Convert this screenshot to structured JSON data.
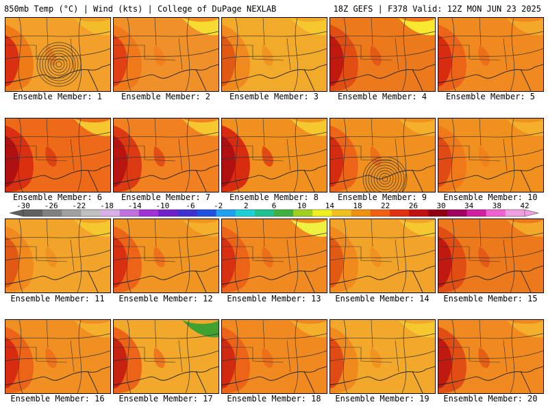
{
  "header": {
    "left": "850mb Temp (°C) | Wind (kts) | College of DuPage NEXLAB",
    "right": "18Z GEFS | F378 Valid: 12Z MON JUN 23 2025"
  },
  "colorbar": {
    "labels": [
      "-30",
      "-26",
      "-22",
      "-18",
      "-14",
      "-10",
      "-6",
      "-2",
      "2",
      "6",
      "10",
      "14",
      "18",
      "22",
      "26",
      "30",
      "34",
      "38",
      "42"
    ],
    "colors": [
      "#606060",
      "#808080",
      "#a0a0a0",
      "#c0c0c0",
      "#d8b0e8",
      "#c070e0",
      "#a030d8",
      "#7020c8",
      "#4030d0",
      "#2050e0",
      "#20a0f0",
      "#20d0d8",
      "#20c090",
      "#40b040",
      "#a0d020",
      "#f0f020",
      "#f0c020",
      "#f09010",
      "#f06010",
      "#e03010",
      "#c01010",
      "#900010",
      "#a00060",
      "#d020a0",
      "#f060d0",
      "#f0a0e0"
    ]
  },
  "panels": [
    {
      "caption": "Ensemble Member: 1",
      "base": "#f2a02a",
      "hot": "#d83010",
      "warm": "#ee7a18",
      "cool": "#f3bc2a",
      "low": true
    },
    {
      "caption": "Ensemble Member: 2",
      "base": "#f09028",
      "hot": "#e04014",
      "warm": "#f07a1a",
      "cool": "#f6dc30",
      "low": false
    },
    {
      "caption": "Ensemble Member: 3",
      "base": "#f2aa2a",
      "hot": "#e05a14",
      "warm": "#f08a1e",
      "cool": "#f6c830",
      "low": false
    },
    {
      "caption": "Ensemble Member: 4",
      "base": "#ec7a1c",
      "hot": "#c01a10",
      "warm": "#e04e14",
      "cool": "#f8e830",
      "low": false
    },
    {
      "caption": "Ensemble Member: 5",
      "base": "#f08a20",
      "hot": "#d82c10",
      "warm": "#ec6418",
      "cool": "#f4a82a",
      "low": false
    },
    {
      "caption": "Ensemble Member: 6",
      "base": "#ec6a18",
      "hot": "#b01010",
      "warm": "#d83010",
      "cool": "#f6c830",
      "low": false
    },
    {
      "caption": "Ensemble Member: 7",
      "base": "#f08020",
      "hot": "#b81410",
      "warm": "#dc3a12",
      "cool": "#f6c830",
      "low": false
    },
    {
      "caption": "Ensemble Member: 8",
      "base": "#f0901e",
      "hot": "#b01010",
      "warm": "#d82c10",
      "cool": "#f6c830",
      "low": false
    },
    {
      "caption": "Ensemble Member: 9",
      "base": "#f0901e",
      "hot": "#d42c10",
      "warm": "#ec6418",
      "cool": "#f4b02a",
      "low": true
    },
    {
      "caption": "Ensemble Member: 10",
      "base": "#f0901e",
      "hot": "#e04a14",
      "warm": "#f07a1a",
      "cool": "#f4b02a",
      "low": false
    },
    {
      "caption": "Ensemble Member: 11",
      "base": "#f2a42a",
      "hot": "#e05a14",
      "warm": "#f08a1e",
      "cool": "#f6c830",
      "low": false
    },
    {
      "caption": "Ensemble Member: 12",
      "base": "#f09422",
      "hot": "#d83010",
      "warm": "#ec6418",
      "cool": "#f4b02a",
      "low": false
    },
    {
      "caption": "Ensemble Member: 13",
      "base": "#f08a20",
      "hot": "#d83010",
      "warm": "#ec6418",
      "cool": "#f0f040",
      "low": false
    },
    {
      "caption": "Ensemble Member: 14",
      "base": "#f2a42a",
      "hot": "#e05a14",
      "warm": "#f08a1e",
      "cool": "#f6c830",
      "low": false
    },
    {
      "caption": "Ensemble Member: 15",
      "base": "#ec7a1c",
      "hot": "#c01a10",
      "warm": "#e04e14",
      "cool": "#f4a82a",
      "low": false
    },
    {
      "caption": "Ensemble Member: 16",
      "base": "#f09022",
      "hot": "#d82c10",
      "warm": "#ec6418",
      "cool": "#f4b02a",
      "low": false
    },
    {
      "caption": "Ensemble Member: 17",
      "base": "#f2a82a",
      "hot": "#c82210",
      "warm": "#ec6418",
      "cool": "#40a030",
      "low": false
    },
    {
      "caption": "Ensemble Member: 18",
      "base": "#f08a20",
      "hot": "#d02a10",
      "warm": "#ec6418",
      "cool": "#f4b02a",
      "low": false
    },
    {
      "caption": "Ensemble Member: 19",
      "base": "#f2a82a",
      "hot": "#e04a14",
      "warm": "#f08a1e",
      "cool": "#f6c830",
      "low": false
    },
    {
      "caption": "Ensemble Member: 20",
      "base": "#f08a20",
      "hot": "#c01a10",
      "warm": "#e04e14",
      "cool": "#f4b02a",
      "low": false
    }
  ]
}
